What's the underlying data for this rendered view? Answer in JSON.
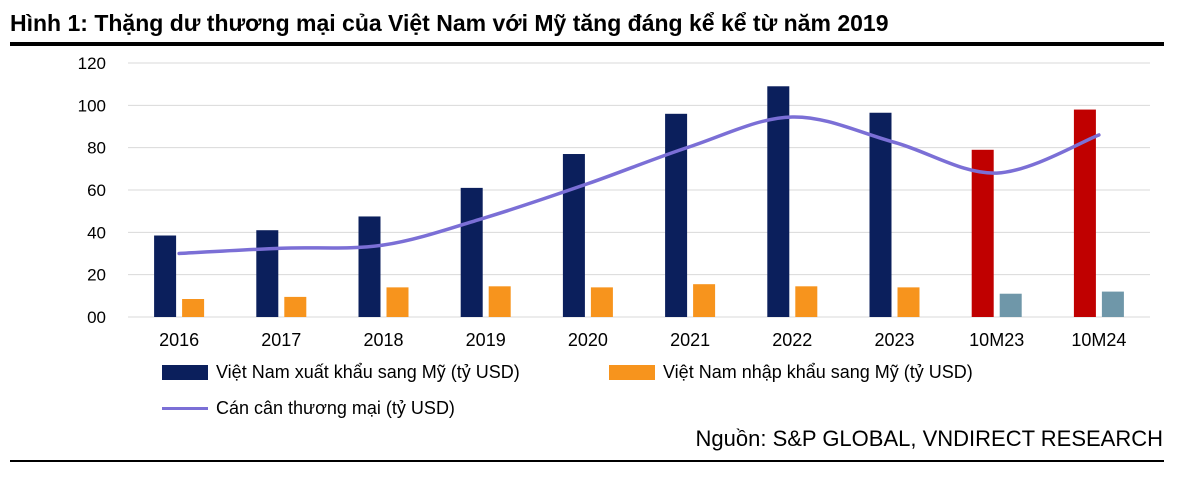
{
  "title": "Hình 1:  Thặng dư thương mại của Việt Nam với Mỹ tăng đáng kể kể từ năm 2019",
  "source": "Nguồn: S&P GLOBAL, VNDIRECT RESEARCH",
  "colors": {
    "export": "#0b1f5c",
    "export_highlight": "#c00000",
    "import": "#f7941d",
    "import_highlight": "#6f97a9",
    "balance": "#7b6fd6",
    "grid": "#d9d9d9"
  },
  "chart_data": {
    "type": "bar",
    "categories": [
      "2016",
      "2017",
      "2018",
      "2019",
      "2020",
      "2021",
      "2022",
      "2023",
      "10M23",
      "10M24"
    ],
    "y_tick_labels": [
      "00",
      "20",
      "40",
      "60",
      "80",
      "100",
      "120"
    ],
    "ylim": [
      0,
      120
    ],
    "grid": true,
    "legend_position": "bottom",
    "series": [
      {
        "name": "Việt Nam xuất khẩu sang Mỹ (tỷ USD)",
        "type": "bar",
        "values": [
          38.5,
          41,
          47.5,
          61,
          77,
          96,
          109,
          96.5,
          79,
          98
        ]
      },
      {
        "name": "Việt Nam nhập khẩu sang Mỹ (tỷ USD)",
        "type": "bar",
        "values": [
          8.5,
          9.5,
          14,
          14.5,
          14,
          15.5,
          14.5,
          14,
          11,
          12
        ]
      },
      {
        "name": "Cán cân thương mại (tỷ USD)",
        "type": "line",
        "values": [
          30,
          32.5,
          34,
          47,
          63,
          80.5,
          94.5,
          82.5,
          68,
          86
        ]
      }
    ]
  }
}
